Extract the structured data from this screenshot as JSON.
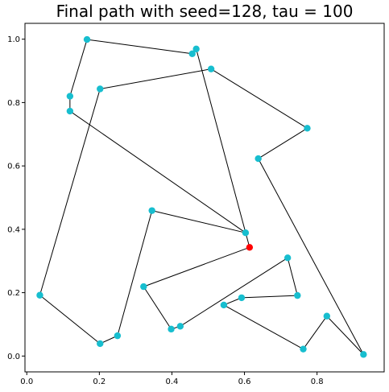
{
  "chart_data": {
    "type": "scatter",
    "title": "Final path with seed=128, tau = 100",
    "xlabel": "",
    "ylabel": "",
    "xlim": [
      -0.005,
      0.985
    ],
    "ylim": [
      -0.05,
      1.05
    ],
    "xticks": [
      0.0,
      0.2,
      0.4,
      0.6,
      0.8
    ],
    "xtick_labels": [
      "0.0",
      "0.2",
      "0.4",
      "0.6",
      "0.8"
    ],
    "yticks": [
      0.0,
      0.2,
      0.4,
      0.6,
      0.8,
      1.0
    ],
    "ytick_labels": [
      "0.0",
      "0.2",
      "0.4",
      "0.6",
      "0.8",
      "1.0"
    ],
    "grid": false,
    "path_color": "#000000",
    "point_color": "#17BECF",
    "start_color": "#FF0000",
    "start_point": {
      "x": 0.614,
      "y": 0.343
    },
    "path": [
      {
        "x": 0.614,
        "y": 0.343
      },
      {
        "x": 0.322,
        "y": 0.219
      },
      {
        "x": 0.398,
        "y": 0.085
      },
      {
        "x": 0.423,
        "y": 0.094
      },
      {
        "x": 0.719,
        "y": 0.31
      },
      {
        "x": 0.746,
        "y": 0.191
      },
      {
        "x": 0.592,
        "y": 0.184
      },
      {
        "x": 0.543,
        "y": 0.161
      },
      {
        "x": 0.762,
        "y": 0.022
      },
      {
        "x": 0.827,
        "y": 0.126
      },
      {
        "x": 0.928,
        "y": 0.005
      },
      {
        "x": 0.638,
        "y": 0.623
      },
      {
        "x": 0.773,
        "y": 0.719
      },
      {
        "x": 0.508,
        "y": 0.906
      },
      {
        "x": 0.202,
        "y": 0.843
      },
      {
        "x": 0.036,
        "y": 0.192
      },
      {
        "x": 0.202,
        "y": 0.039
      },
      {
        "x": 0.25,
        "y": 0.064
      },
      {
        "x": 0.345,
        "y": 0.459
      },
      {
        "x": 0.603,
        "y": 0.389
      },
      {
        "x": 0.119,
        "y": 0.773
      },
      {
        "x": 0.119,
        "y": 0.82
      },
      {
        "x": 0.166,
        "y": 0.999
      },
      {
        "x": 0.456,
        "y": 0.954
      },
      {
        "x": 0.467,
        "y": 0.969
      },
      {
        "x": 0.614,
        "y": 0.343
      }
    ]
  }
}
